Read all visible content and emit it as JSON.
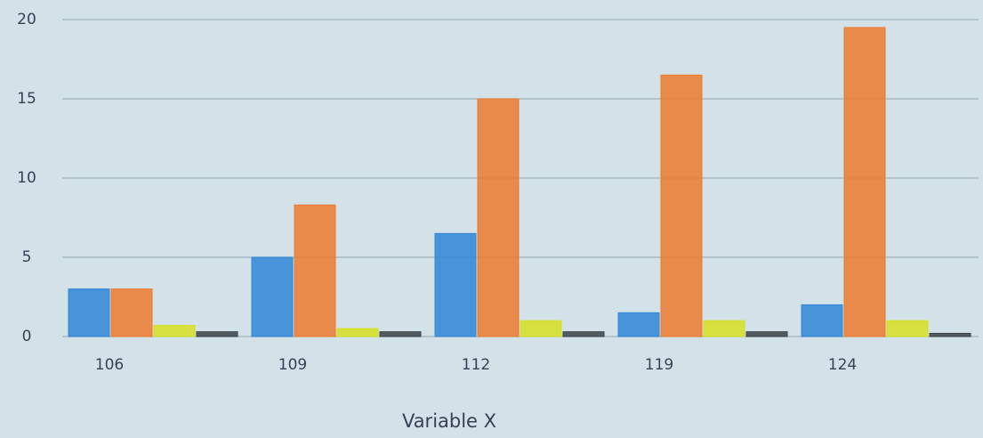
{
  "chart_data": {
    "type": "bar",
    "x_label": "Variable X",
    "categories": [
      "106",
      "109",
      "112",
      "119",
      "124"
    ],
    "series": [
      {
        "color": "#2f86d8",
        "values": [
          3,
          5,
          6.5,
          1.5,
          2
        ]
      },
      {
        "color": "#ec7a2e",
        "values": [
          3,
          8.3,
          15,
          16.5,
          19.5
        ]
      },
      {
        "color": "#d6e021",
        "values": [
          0.7,
          0.5,
          1,
          1,
          1
        ]
      },
      {
        "color": "#3b4448",
        "values": [
          0.3,
          0.3,
          0.3,
          0.3,
          0.2
        ]
      }
    ],
    "ylim": [
      0,
      20
    ],
    "yticks": [
      0,
      5,
      10,
      15,
      20
    ],
    "grid": true
  }
}
